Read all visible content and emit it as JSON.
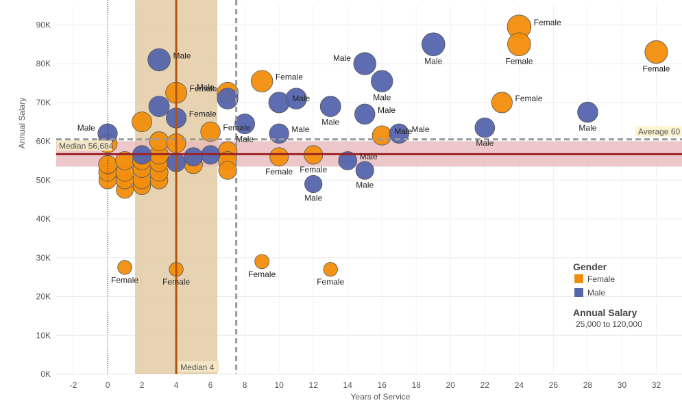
{
  "chart_data": {
    "type": "scatter",
    "title": "",
    "xlabel": "Years of Service",
    "ylabel": "Annual Salary",
    "xlim": [
      -3,
      33.5
    ],
    "ylim": [
      0,
      95000
    ],
    "x_ticks": [
      -2,
      0,
      2,
      4,
      6,
      8,
      10,
      12,
      14,
      16,
      18,
      20,
      22,
      24,
      26,
      28,
      30,
      32
    ],
    "x_tick_labels": [
      "-2",
      "0",
      "2",
      "4",
      "6",
      "8",
      "10",
      "12",
      "14",
      "16",
      "18",
      "20",
      "22",
      "24",
      "26",
      "28",
      "30",
      "32"
    ],
    "y_ticks": [
      0,
      10000,
      20000,
      30000,
      40000,
      50000,
      60000,
      70000,
      80000,
      90000
    ],
    "y_tick_labels": [
      "0K",
      "10K",
      "20K",
      "30K",
      "40K",
      "50K",
      "60K",
      "70K",
      "80K",
      "90K"
    ],
    "grid": true,
    "colors": {
      "Female": "#f28e0c",
      "Male": "#5565ad",
      "median_line": "#9b2226",
      "median_band": "#e9b9bc",
      "x_band": "#e3cba3",
      "x_median_line": "#b5530d",
      "reference": "#999999"
    },
    "reference_lines": {
      "y_median": {
        "value": 56684,
        "label": "Median 56,684"
      },
      "y_average": {
        "value": 60500,
        "label": "Average 60"
      },
      "x_median": {
        "value": 4,
        "label": "Median 4"
      },
      "x_average": {
        "value": 7.5
      },
      "x_zero_dotted": {
        "value": 0
      },
      "y_band": [
        53500,
        60000
      ],
      "x_band": [
        1.6,
        6.4
      ]
    },
    "legend": {
      "title": "Gender",
      "position": "right",
      "entries": [
        {
          "name": "Female",
          "color": "#f28e0c"
        },
        {
          "name": "Male",
          "color": "#5565ad"
        }
      ],
      "size_title": "Annual Salary",
      "size_range_text": "25,000 to 120,000"
    },
    "series": [
      {
        "name": "Female",
        "points": [
          {
            "x": 0,
            "y": 50000
          },
          {
            "x": 0,
            "y": 52000
          },
          {
            "x": 0,
            "y": 54000
          },
          {
            "x": 0,
            "y": 59500
          },
          {
            "x": 1,
            "y": 47500
          },
          {
            "x": 1,
            "y": 50000
          },
          {
            "x": 1,
            "y": 52000
          },
          {
            "x": 1,
            "y": 55000
          },
          {
            "x": 1,
            "y": 27500,
            "label": "Female"
          },
          {
            "x": 2,
            "y": 65000
          },
          {
            "x": 2,
            "y": 48500
          },
          {
            "x": 2,
            "y": 50000
          },
          {
            "x": 2,
            "y": 53000
          },
          {
            "x": 2,
            "y": 55000
          },
          {
            "x": 3,
            "y": 50000
          },
          {
            "x": 3,
            "y": 52000
          },
          {
            "x": 3,
            "y": 54500
          },
          {
            "x": 3,
            "y": 56500
          },
          {
            "x": 3,
            "y": 60000
          },
          {
            "x": 4,
            "y": 72500,
            "label": "Female"
          },
          {
            "x": 4,
            "y": 27000,
            "label": "Female"
          },
          {
            "x": 4,
            "y": 59500
          },
          {
            "x": 5,
            "y": 54000
          },
          {
            "x": 6,
            "y": 62500,
            "label": "Female"
          },
          {
            "x": 7,
            "y": 72500,
            "label": "Male"
          },
          {
            "x": 7,
            "y": 57500
          },
          {
            "x": 7,
            "y": 55000
          },
          {
            "x": 7,
            "y": 52500
          },
          {
            "x": 9,
            "y": 75500,
            "label": "Female"
          },
          {
            "x": 9,
            "y": 29000,
            "label": "Female"
          },
          {
            "x": 10,
            "y": 56000,
            "label": "Female"
          },
          {
            "x": 12,
            "y": 56500,
            "label": "Female"
          },
          {
            "x": 13,
            "y": 27000,
            "label": "Female"
          },
          {
            "x": 16,
            "y": 61500,
            "label": "Male"
          },
          {
            "x": 23,
            "y": 70000,
            "label": "Female"
          },
          {
            "x": 24,
            "y": 89500,
            "label": "Female"
          },
          {
            "x": 24,
            "y": 85000,
            "label": "Female"
          },
          {
            "x": 32,
            "y": 83000,
            "label": "Female"
          }
        ]
      },
      {
        "name": "Male",
        "points": [
          {
            "x": 0,
            "y": 62000,
            "label": "Male"
          },
          {
            "x": 2,
            "y": 56500
          },
          {
            "x": 3,
            "y": 81000,
            "label": "Male"
          },
          {
            "x": 3,
            "y": 69000
          },
          {
            "x": 4,
            "y": 66000,
            "label": "Female"
          },
          {
            "x": 4,
            "y": 54500
          },
          {
            "x": 5,
            "y": 56000
          },
          {
            "x": 6,
            "y": 56500
          },
          {
            "x": 7,
            "y": 71000
          },
          {
            "x": 8,
            "y": 64500,
            "label": "Male"
          },
          {
            "x": 10,
            "y": 70000,
            "label": "Male"
          },
          {
            "x": 10,
            "y": 62000,
            "label": "Male"
          },
          {
            "x": 11,
            "y": 71000
          },
          {
            "x": 12,
            "y": 49000,
            "label": "Male"
          },
          {
            "x": 13,
            "y": 69000,
            "label": "Male"
          },
          {
            "x": 14,
            "y": 55000,
            "label": "Male"
          },
          {
            "x": 15,
            "y": 80000,
            "label": "Male"
          },
          {
            "x": 15,
            "y": 67000,
            "label": "Male"
          },
          {
            "x": 15,
            "y": 52500,
            "label": "Male"
          },
          {
            "x": 16,
            "y": 75500,
            "label": "Male"
          },
          {
            "x": 17,
            "y": 62000,
            "label": "Male"
          },
          {
            "x": 19,
            "y": 85000,
            "label": "Male"
          },
          {
            "x": 22,
            "y": 63500,
            "label": "Male"
          },
          {
            "x": 28,
            "y": 67500,
            "label": "Male"
          }
        ]
      }
    ]
  }
}
